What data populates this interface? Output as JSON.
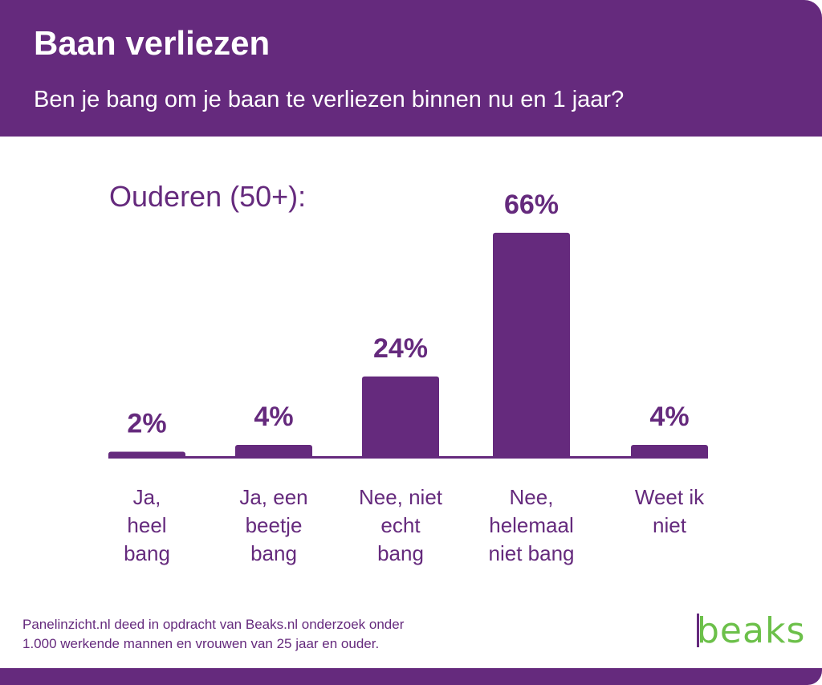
{
  "header": {
    "title": "Baan verliezen",
    "subtitle": "Ben je bang om je baan te verliezen binnen nu en 1 jaar?"
  },
  "chart_data": {
    "type": "bar",
    "group_label": "Ouderen (50+):",
    "categories": [
      [
        "Ja,",
        "heel",
        "bang"
      ],
      [
        "Ja, een",
        "beetje",
        "bang"
      ],
      [
        "Nee, niet",
        "echt",
        "bang"
      ],
      [
        "Nee,",
        "helemaal",
        "niet bang"
      ],
      [
        "Weet ik",
        "niet"
      ]
    ],
    "values": [
      2,
      4,
      24,
      66,
      4
    ],
    "data_labels": [
      "2%",
      "4%",
      "24%",
      "66%",
      "4%"
    ],
    "bar_color": "#652a7d",
    "grid": false
  },
  "footnote": [
    "Panelinzicht.nl deed in opdracht van Beaks.nl onderzoek onder",
    "1.000 werkende mannen en vrouwen van 25 jaar en ouder."
  ],
  "logo": {
    "text": "beaks",
    "color": "#6cc04a"
  }
}
